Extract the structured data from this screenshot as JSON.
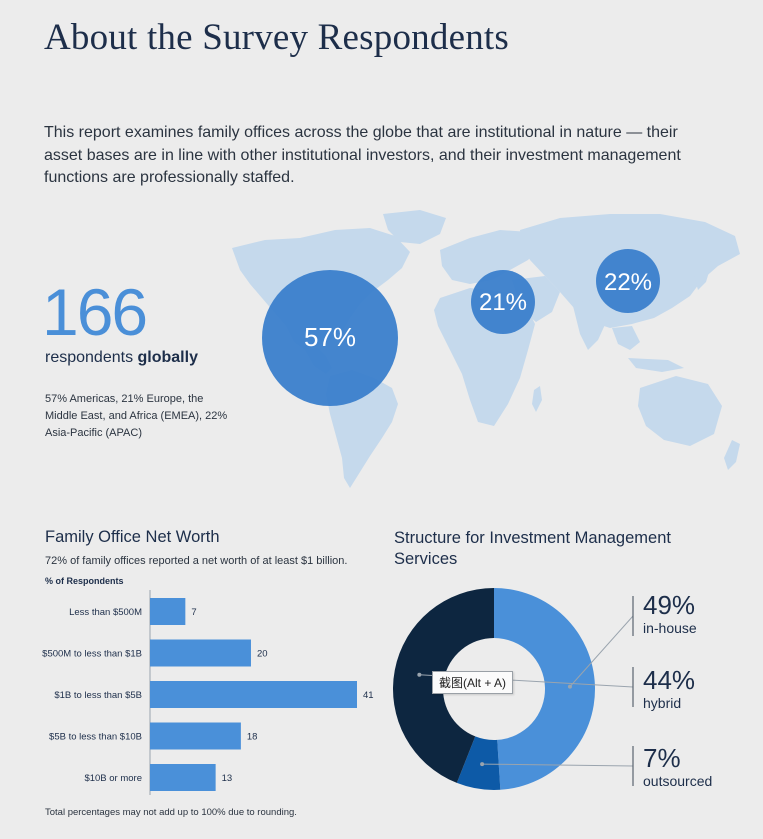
{
  "title": "About the Survey Respondents",
  "intro": "This report examines family offices across the globe that are institutional in nature — their asset bases are in line with other institutional investors, and their investment management functions are professionally staffed.",
  "respondents": {
    "count": "166",
    "label_prefix": "respondents ",
    "label_bold": "globally",
    "breakdown": "57% Americas, 21% Europe, the Middle East, and Africa (EMEA), 22% Asia-Pacific (APAC)"
  },
  "map": {
    "regions": [
      {
        "name": "Americas",
        "label": "57%",
        "value": 57
      },
      {
        "name": "EMEA",
        "label": "21%",
        "value": 21
      },
      {
        "name": "APAC",
        "label": "22%",
        "value": 22
      }
    ]
  },
  "net_worth": {
    "title": "Family Office Net Worth",
    "subtitle": "72% of family offices reported a net worth of at least $1 billion.",
    "axis_label": "% of Respondents",
    "footnote": "Total percentages may not add up to 100% due to rounding."
  },
  "structure": {
    "title": "Structure for Investment Management Services",
    "items": [
      {
        "pct": "49%",
        "label": "in-house"
      },
      {
        "pct": "44%",
        "label": "hybrid"
      },
      {
        "pct": "7%",
        "label": "outsourced"
      }
    ]
  },
  "tooltip": "截图(Alt + A)",
  "colors": {
    "accent": "#4a8fd8",
    "bar": "#4a90d9",
    "navy": "#0d2640",
    "mid_blue": "#0d5aa7",
    "map": "#c5d9ec",
    "bubble": "#3b7fcc"
  },
  "chart_data": [
    {
      "type": "bar",
      "orientation": "horizontal",
      "title": "Family Office Net Worth",
      "subtitle": "72% of family offices reported a net worth of at least $1 billion.",
      "xlabel": "% of Respondents",
      "categories": [
        "Less than $500M",
        "$500M to less than $1B",
        "$1B to less than $5B",
        "$5B to less than $10B",
        "$10B or more"
      ],
      "values": [
        7,
        20,
        41,
        18,
        13
      ],
      "xlim": [
        0,
        41
      ]
    },
    {
      "type": "pie",
      "donut": true,
      "title": "Structure for Investment Management Services",
      "categories": [
        "in-house",
        "hybrid",
        "outsourced"
      ],
      "values": [
        49,
        44,
        7
      ],
      "colors": [
        "#4a90d9",
        "#0d2640",
        "#0d5aa7"
      ]
    }
  ]
}
